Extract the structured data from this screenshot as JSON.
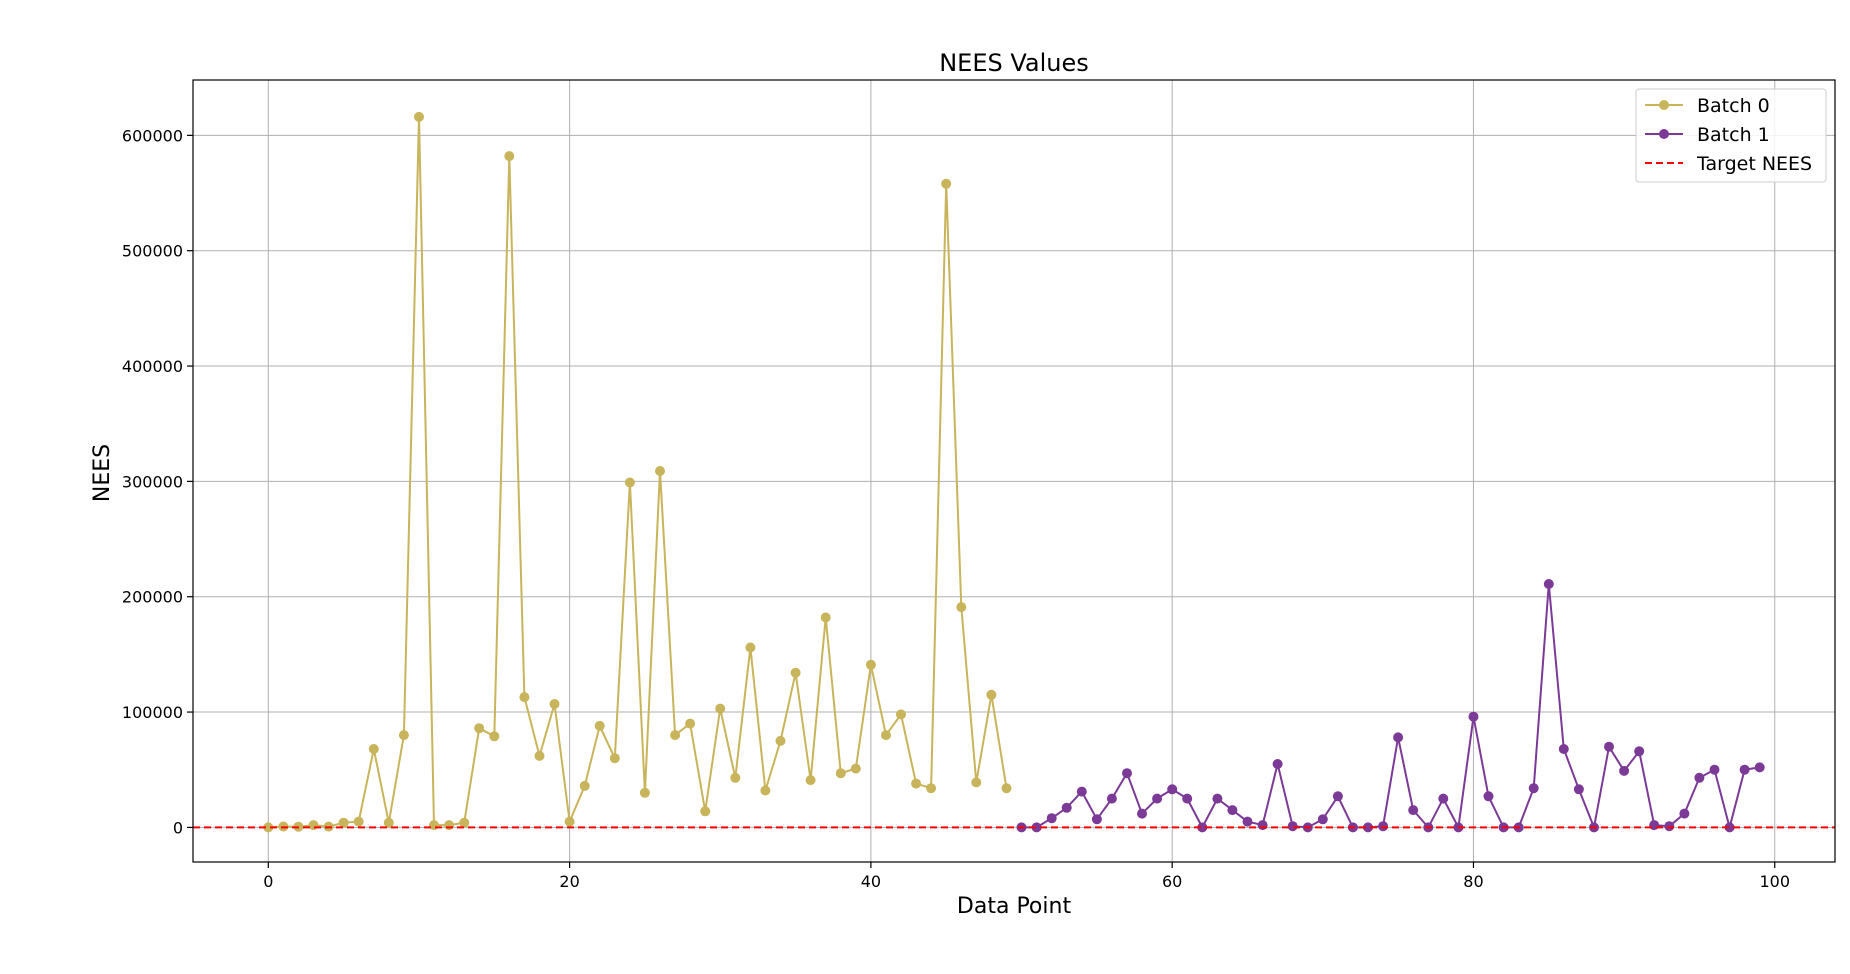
{
  "chart_data": {
    "type": "line",
    "title": "NEES Values",
    "xlabel": "Data Point",
    "ylabel": "NEES",
    "xlim": [
      -5,
      104
    ],
    "ylim": [
      -30000,
      648000
    ],
    "x_ticks": [
      0,
      20,
      40,
      60,
      80,
      100
    ],
    "y_ticks": [
      0,
      100000,
      200000,
      300000,
      400000,
      500000,
      600000
    ],
    "grid": true,
    "legend_position": "top-right",
    "series": [
      {
        "name": "Batch 0",
        "color": "#C8B45A",
        "marker": "circle",
        "x": [
          0,
          1,
          2,
          3,
          4,
          5,
          6,
          7,
          8,
          9,
          10,
          11,
          12,
          13,
          14,
          15,
          16,
          17,
          18,
          19,
          20,
          21,
          22,
          23,
          24,
          25,
          26,
          27,
          28,
          29,
          30,
          31,
          32,
          33,
          34,
          35,
          36,
          37,
          38,
          39,
          40,
          41,
          42,
          43,
          44,
          45,
          46,
          47,
          48,
          49
        ],
        "values": [
          0,
          800,
          600,
          2000,
          700,
          4000,
          5000,
          68000,
          4000,
          80000,
          616000,
          2000,
          2000,
          4000,
          86000,
          79000,
          582000,
          113000,
          62000,
          107000,
          5000,
          36000,
          88000,
          60000,
          299000,
          30000,
          309000,
          80000,
          90000,
          14000,
          103000,
          43000,
          156000,
          32000,
          75000,
          134000,
          41000,
          182000,
          47000,
          51000,
          141000,
          80000,
          98000,
          38000,
          34000,
          558000,
          191000,
          39000,
          115000,
          34000
        ]
      },
      {
        "name": "Batch 1",
        "color": "#7B3A96",
        "marker": "circle",
        "x": [
          50,
          51,
          52,
          53,
          54,
          55,
          56,
          57,
          58,
          59,
          60,
          61,
          62,
          63,
          64,
          65,
          66,
          67,
          68,
          69,
          70,
          71,
          72,
          73,
          74,
          75,
          76,
          77,
          78,
          79,
          80,
          81,
          82,
          83,
          84,
          85,
          86,
          87,
          88,
          89,
          90,
          91,
          92,
          93,
          94,
          95,
          96,
          97,
          98,
          99
        ],
        "values": [
          0,
          0,
          8000,
          17000,
          31000,
          7000,
          25000,
          47000,
          12000,
          25000,
          33000,
          25000,
          0,
          25000,
          15000,
          5000,
          2000,
          55000,
          1000,
          0,
          7000,
          27000,
          0,
          0,
          1000,
          78000,
          15000,
          0,
          25000,
          0,
          96000,
          27000,
          0,
          0,
          34000,
          211000,
          68000,
          33000,
          0,
          70000,
          49000,
          66000,
          2000,
          1000,
          12000,
          43000,
          50000,
          0,
          50000,
          52000
        ]
      }
    ],
    "reference_line": {
      "name": "Target NEES",
      "value": 0,
      "color": "#FF0000",
      "style": "dashed"
    }
  }
}
